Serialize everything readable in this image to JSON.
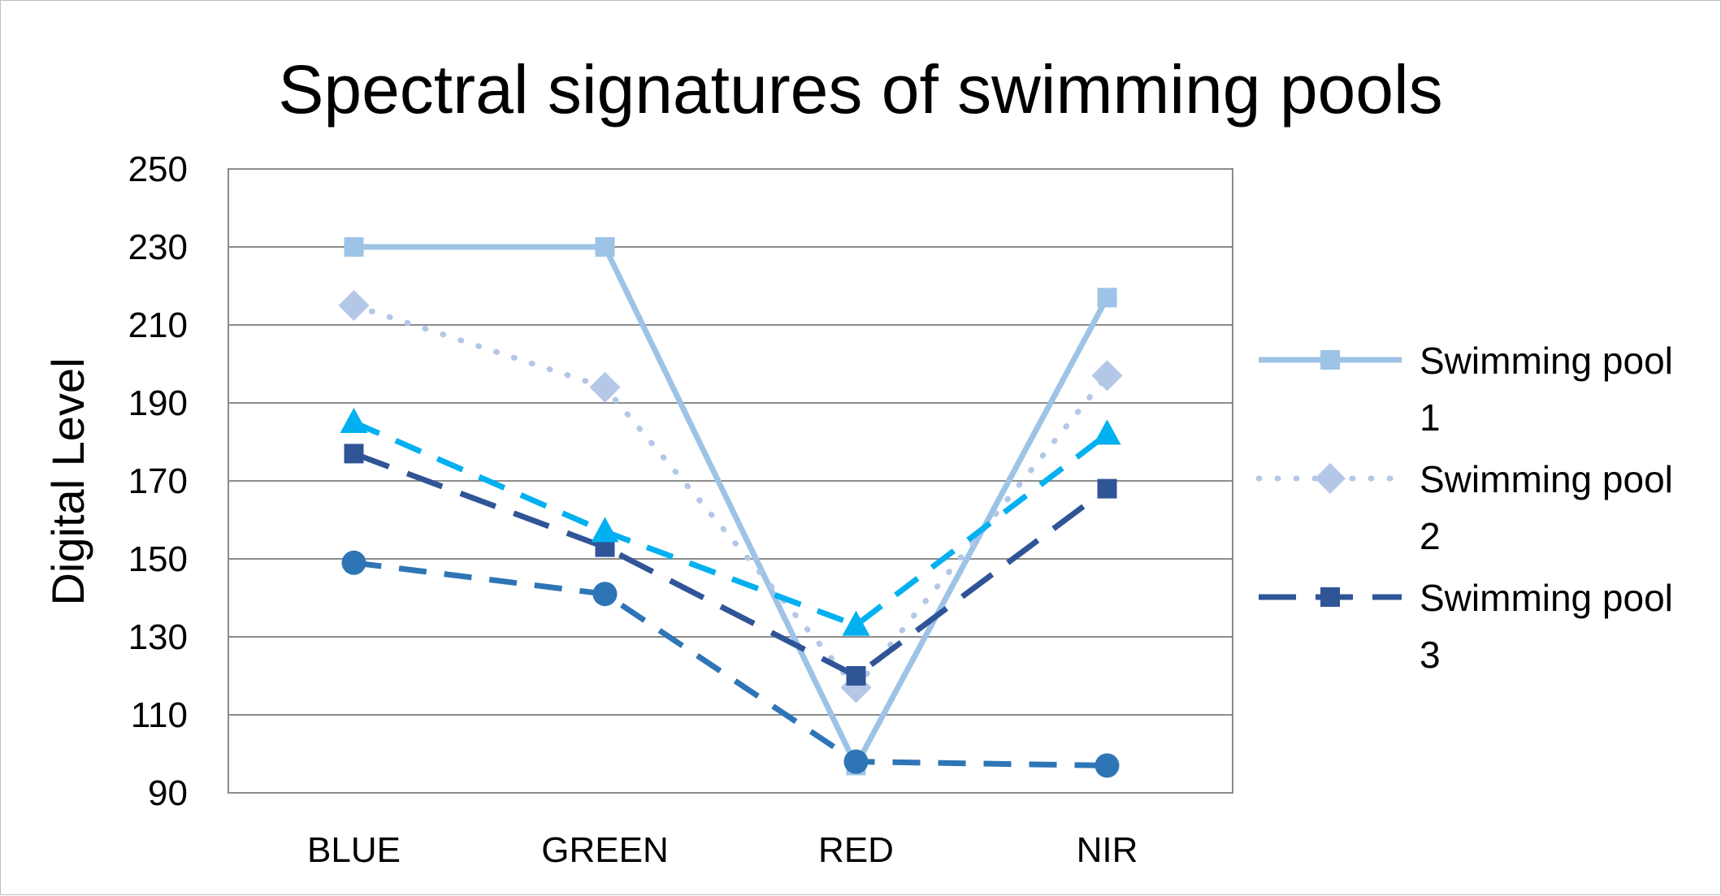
{
  "chart_data": {
    "type": "line",
    "title": "Spectral signatures of swimming pools",
    "xlabel": "",
    "ylabel": "Digital Level",
    "categories": [
      "BLUE",
      "GREEN",
      "RED",
      "NIR"
    ],
    "ylim": [
      90,
      250
    ],
    "yticks": [
      90,
      110,
      130,
      150,
      170,
      190,
      210,
      230,
      250
    ],
    "grid": true,
    "legend_position": "right",
    "series": [
      {
        "name": "Swimming pool 1",
        "name_lines": [
          "Swimming pool",
          "1"
        ],
        "values": [
          230,
          230,
          97,
          217
        ],
        "color": "#9dc3e6",
        "dash": "solid",
        "marker": "square",
        "in_legend": true
      },
      {
        "name": "Swimming pool 2",
        "name_lines": [
          "Swimming pool",
          "2"
        ],
        "values": [
          215,
          194,
          117,
          197
        ],
        "color": "#b4c7e7",
        "dash": "dot",
        "marker": "diamond",
        "in_legend": true
      },
      {
        "name": "Swimming pool 3",
        "name_lines": [
          "Swimming pool",
          "3"
        ],
        "values": [
          177,
          153,
          120,
          168
        ],
        "color": "#2f5597",
        "dash": "longdash",
        "marker": "square",
        "in_legend": true
      },
      {
        "name": "",
        "values": [
          185,
          157,
          133,
          182
        ],
        "color": "#00b0f0",
        "dash": "dash",
        "marker": "triangle",
        "in_legend": false
      },
      {
        "name": "",
        "values": [
          149,
          141,
          98,
          97
        ],
        "color": "#2e75b6",
        "dash": "dash",
        "marker": "circle",
        "in_legend": false
      }
    ]
  }
}
